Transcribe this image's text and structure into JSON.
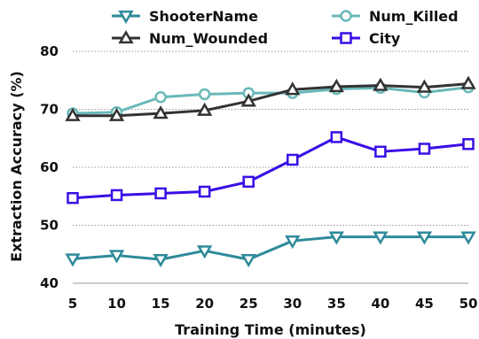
{
  "chart_data": {
    "type": "line",
    "title": "",
    "xlabel": "Training Time (minutes)",
    "ylabel": "Extraction Accuracy (%)",
    "x": [
      5,
      10,
      15,
      20,
      25,
      30,
      35,
      40,
      45,
      50
    ],
    "xlim": [
      5,
      50
    ],
    "ylim": [
      40,
      80
    ],
    "yticks": [
      40,
      50,
      60,
      70,
      80
    ],
    "grid": "horizontal dotted",
    "legend": "top, two columns",
    "series": [
      {
        "name": "ShooterName",
        "color": "#2e8a9a",
        "marker": "triangle-down",
        "values": [
          44.2,
          44.8,
          44.1,
          45.6,
          44.1,
          47.3,
          48.0,
          48.0,
          48.0,
          48.0
        ]
      },
      {
        "name": "Num_Killed",
        "color": "#6ab8b8",
        "marker": "circle",
        "values": [
          69.3,
          69.5,
          72.1,
          72.6,
          72.8,
          72.8,
          73.5,
          73.7,
          72.9,
          73.8
        ]
      },
      {
        "name": "Num_Wounded",
        "color": "#333333",
        "marker": "triangle-up",
        "values": [
          68.9,
          68.9,
          69.3,
          69.8,
          71.4,
          73.4,
          73.9,
          74.1,
          73.8,
          74.4
        ]
      },
      {
        "name": "City",
        "color": "#3a0ee6",
        "marker": "square",
        "values": [
          54.7,
          55.2,
          55.5,
          55.8,
          57.5,
          61.3,
          65.2,
          62.7,
          63.2,
          64.0
        ]
      }
    ]
  }
}
